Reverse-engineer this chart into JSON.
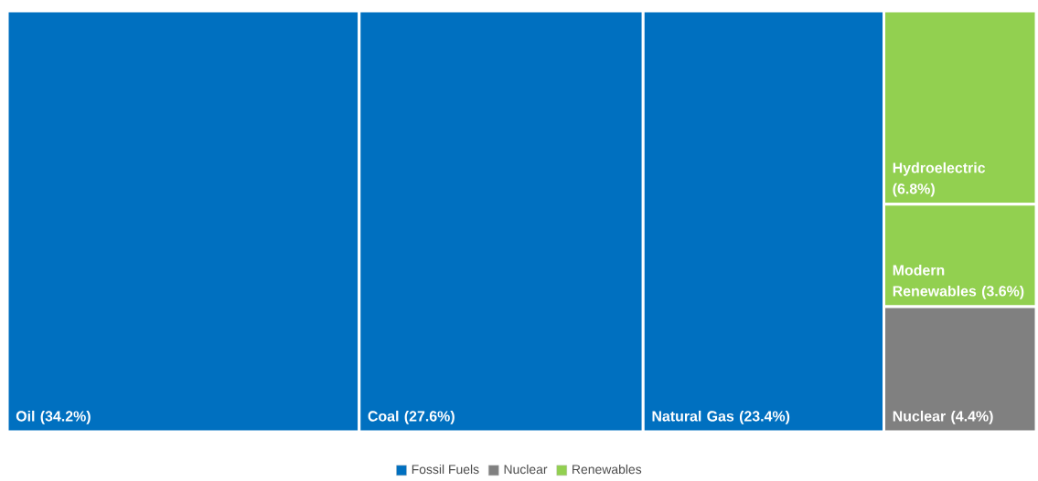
{
  "chart_data": {
    "type": "other",
    "categories": [
      "Oil",
      "Coal",
      "Natural Gas",
      "Hydroelectric",
      "Modern Renewables",
      "Nuclear"
    ],
    "series": [
      {
        "name": "Fossil Fuels",
        "color": "#0070c0",
        "values": [
          34.2,
          27.6,
          23.4,
          null,
          null,
          null
        ],
        "value_labels": [
          "(34.2%)",
          "(27.6%)",
          "(23.4%)",
          null,
          null,
          null
        ]
      },
      {
        "name": "Nuclear",
        "color": "#808080",
        "values": [
          null,
          null,
          null,
          null,
          null,
          4.4
        ],
        "value_labels": [
          null,
          null,
          null,
          null,
          null,
          "(4.4%)"
        ]
      },
      {
        "name": "Renewables",
        "color": "#92d050",
        "values": [
          null,
          null,
          null,
          6.8,
          3.6,
          null
        ],
        "value_labels": [
          null,
          null,
          null,
          "(6.8%)",
          "(3.6%)",
          null
        ]
      }
    ],
    "legend": "bottom"
  }
}
